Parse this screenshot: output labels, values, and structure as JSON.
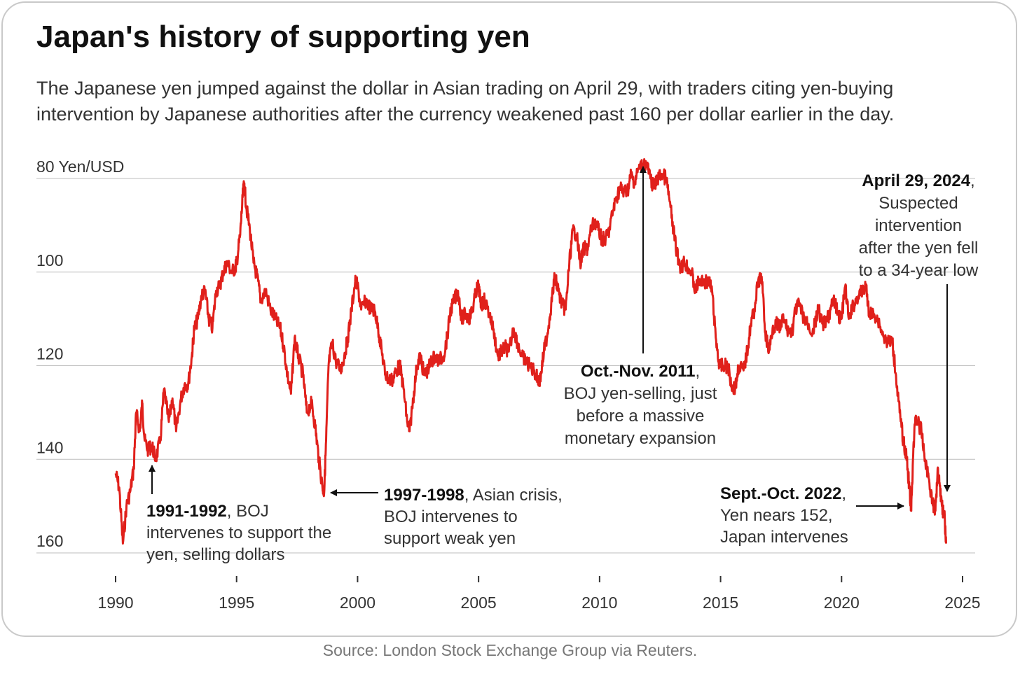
{
  "title": "Japan's history of supporting yen",
  "subtitle": "The Japanese yen jumped against the dollar in Asian trading on April 29, with traders citing yen-buying intervention by Japanese authorities after the currency weakened past 160 per dollar earlier in the day.",
  "source": "Source: London Stock Exchange Group via Reuters.",
  "colors": {
    "line": "#e0201b",
    "grid": "#bdbdbd",
    "text": "#333333",
    "arrow": "#111111"
  },
  "chart_data": {
    "type": "line",
    "ylabel": "80 Yen/USD",
    "y_inverted": true,
    "ylim": [
      80,
      160
    ],
    "xlim": [
      1990,
      2025
    ],
    "y_ticks": [
      "80 Yen/USD",
      "100",
      "120",
      "140",
      "160"
    ],
    "y_tick_values": [
      80,
      100,
      120,
      140,
      160
    ],
    "x_ticks": [
      "1990",
      "1995",
      "2000",
      "2005",
      "2010",
      "2015",
      "2020",
      "2025"
    ],
    "x_tick_values": [
      1990,
      1995,
      2000,
      2005,
      2010,
      2015,
      2020,
      2025
    ],
    "series": [
      {
        "values": [
          [
            1990.0,
            143
          ],
          [
            1990.15,
            146
          ],
          [
            1990.3,
            158
          ],
          [
            1990.45,
            150
          ],
          [
            1990.6,
            147
          ],
          [
            1990.75,
            142
          ],
          [
            1990.85,
            130
          ],
          [
            1991.0,
            134
          ],
          [
            1991.1,
            128
          ],
          [
            1991.2,
            136
          ],
          [
            1991.35,
            138
          ],
          [
            1991.5,
            137
          ],
          [
            1991.65,
            140
          ],
          [
            1991.85,
            136
          ],
          [
            1992.0,
            125
          ],
          [
            1992.2,
            132
          ],
          [
            1992.35,
            127
          ],
          [
            1992.5,
            134
          ],
          [
            1992.7,
            127
          ],
          [
            1992.85,
            124
          ],
          [
            1993.0,
            124
          ],
          [
            1993.15,
            118
          ],
          [
            1993.25,
            112
          ],
          [
            1993.4,
            110
          ],
          [
            1993.55,
            105
          ],
          [
            1993.7,
            104
          ],
          [
            1993.85,
            110
          ],
          [
            1994.0,
            112
          ],
          [
            1994.15,
            104
          ],
          [
            1994.3,
            103
          ],
          [
            1994.45,
            100
          ],
          [
            1994.6,
            98
          ],
          [
            1994.8,
            100
          ],
          [
            1994.95,
            99
          ],
          [
            1995.0,
            98
          ],
          [
            1995.15,
            92
          ],
          [
            1995.25,
            84
          ],
          [
            1995.32,
            81
          ],
          [
            1995.4,
            86
          ],
          [
            1995.55,
            91
          ],
          [
            1995.7,
            98
          ],
          [
            1995.85,
            101
          ],
          [
            1996.0,
            106
          ],
          [
            1996.2,
            104
          ],
          [
            1996.4,
            108
          ],
          [
            1996.6,
            110
          ],
          [
            1996.8,
            112
          ],
          [
            1996.95,
            116
          ],
          [
            1997.1,
            122
          ],
          [
            1997.25,
            126
          ],
          [
            1997.4,
            114
          ],
          [
            1997.55,
            118
          ],
          [
            1997.75,
            122
          ],
          [
            1997.9,
            130
          ],
          [
            1998.1,
            128
          ],
          [
            1998.25,
            133
          ],
          [
            1998.4,
            140
          ],
          [
            1998.55,
            146
          ],
          [
            1998.62,
            147
          ],
          [
            1998.7,
            136
          ],
          [
            1998.8,
            120
          ],
          [
            1998.95,
            115
          ],
          [
            1999.1,
            119
          ],
          [
            1999.3,
            121
          ],
          [
            1999.45,
            118
          ],
          [
            1999.6,
            114
          ],
          [
            1999.75,
            108
          ],
          [
            1999.9,
            102
          ],
          [
            2000.0,
            103
          ],
          [
            2000.15,
            108
          ],
          [
            2000.35,
            106
          ],
          [
            2000.55,
            108
          ],
          [
            2000.7,
            108
          ],
          [
            2000.85,
            112
          ],
          [
            2001.0,
            117
          ],
          [
            2001.15,
            122
          ],
          [
            2001.3,
            123
          ],
          [
            2001.45,
            123
          ],
          [
            2001.6,
            121
          ],
          [
            2001.75,
            120
          ],
          [
            2001.9,
            125
          ],
          [
            2002.05,
            132
          ],
          [
            2002.15,
            134
          ],
          [
            2002.3,
            127
          ],
          [
            2002.45,
            120
          ],
          [
            2002.6,
            118
          ],
          [
            2002.75,
            122
          ],
          [
            2002.9,
            121
          ],
          [
            2003.05,
            119
          ],
          [
            2003.2,
            118
          ],
          [
            2003.35,
            119
          ],
          [
            2003.55,
            118
          ],
          [
            2003.7,
            114
          ],
          [
            2003.85,
            108
          ],
          [
            2004.0,
            106
          ],
          [
            2004.15,
            104
          ],
          [
            2004.3,
            110
          ],
          [
            2004.45,
            109
          ],
          [
            2004.6,
            110
          ],
          [
            2004.75,
            108
          ],
          [
            2004.9,
            104
          ],
          [
            2005.0,
            103
          ],
          [
            2005.1,
            107
          ],
          [
            2005.25,
            106
          ],
          [
            2005.45,
            109
          ],
          [
            2005.6,
            112
          ],
          [
            2005.8,
            118
          ],
          [
            2005.95,
            117
          ],
          [
            2006.1,
            116
          ],
          [
            2006.25,
            117
          ],
          [
            2006.45,
            112
          ],
          [
            2006.6,
            115
          ],
          [
            2006.8,
            118
          ],
          [
            2006.95,
            119
          ],
          [
            2007.1,
            120
          ],
          [
            2007.3,
            121
          ],
          [
            2007.45,
            123
          ],
          [
            2007.55,
            123
          ],
          [
            2007.7,
            117
          ],
          [
            2007.85,
            113
          ],
          [
            2008.0,
            107
          ],
          [
            2008.15,
            101
          ],
          [
            2008.3,
            104
          ],
          [
            2008.45,
            107
          ],
          [
            2008.6,
            108
          ],
          [
            2008.75,
            98
          ],
          [
            2008.9,
            91
          ],
          [
            2009.05,
            92
          ],
          [
            2009.2,
            98
          ],
          [
            2009.35,
            95
          ],
          [
            2009.5,
            95
          ],
          [
            2009.65,
            91
          ],
          [
            2009.8,
            89
          ],
          [
            2009.95,
            91
          ],
          [
            2010.1,
            93
          ],
          [
            2010.25,
            93
          ],
          [
            2010.4,
            91
          ],
          [
            2010.55,
            87
          ],
          [
            2010.7,
            84
          ],
          [
            2010.85,
            82
          ],
          [
            2011.0,
            83
          ],
          [
            2011.2,
            82
          ],
          [
            2011.3,
            79
          ],
          [
            2011.45,
            81
          ],
          [
            2011.6,
            78
          ],
          [
            2011.8,
            77
          ],
          [
            2011.95,
            77
          ],
          [
            2012.1,
            80
          ],
          [
            2012.25,
            82
          ],
          [
            2012.4,
            80
          ],
          [
            2012.55,
            79
          ],
          [
            2012.75,
            80
          ],
          [
            2012.9,
            85
          ],
          [
            2013.05,
            91
          ],
          [
            2013.2,
            96
          ],
          [
            2013.35,
            99
          ],
          [
            2013.5,
            98
          ],
          [
            2013.65,
            99
          ],
          [
            2013.8,
            100
          ],
          [
            2013.95,
            104
          ],
          [
            2014.1,
            102
          ],
          [
            2014.3,
            102
          ],
          [
            2014.5,
            102
          ],
          [
            2014.65,
            104
          ],
          [
            2014.8,
            114
          ],
          [
            2014.95,
            120
          ],
          [
            2015.1,
            120
          ],
          [
            2015.3,
            120
          ],
          [
            2015.45,
            124
          ],
          [
            2015.6,
            125
          ],
          [
            2015.75,
            120
          ],
          [
            2015.95,
            121
          ],
          [
            2016.1,
            117
          ],
          [
            2016.25,
            111
          ],
          [
            2016.4,
            108
          ],
          [
            2016.55,
            102
          ],
          [
            2016.7,
            101
          ],
          [
            2016.85,
            113
          ],
          [
            2017.0,
            117
          ],
          [
            2017.15,
            112
          ],
          [
            2017.3,
            111
          ],
          [
            2017.45,
            112
          ],
          [
            2017.6,
            110
          ],
          [
            2017.75,
            112
          ],
          [
            2017.95,
            113
          ],
          [
            2018.1,
            108
          ],
          [
            2018.25,
            107
          ],
          [
            2018.45,
            110
          ],
          [
            2018.6,
            111
          ],
          [
            2018.8,
            113
          ],
          [
            2018.95,
            110
          ],
          [
            2019.05,
            108
          ],
          [
            2019.2,
            111
          ],
          [
            2019.35,
            111
          ],
          [
            2019.55,
            108
          ],
          [
            2019.7,
            106
          ],
          [
            2019.85,
            109
          ],
          [
            2020.0,
            110
          ],
          [
            2020.15,
            103
          ],
          [
            2020.3,
            110
          ],
          [
            2020.5,
            107
          ],
          [
            2020.7,
            105
          ],
          [
            2020.9,
            104
          ],
          [
            2021.0,
            103
          ],
          [
            2021.15,
            109
          ],
          [
            2021.35,
            109
          ],
          [
            2021.5,
            110
          ],
          [
            2021.75,
            114
          ],
          [
            2021.95,
            115
          ],
          [
            2022.1,
            115
          ],
          [
            2022.25,
            122
          ],
          [
            2022.4,
            130
          ],
          [
            2022.55,
            136
          ],
          [
            2022.7,
            140
          ],
          [
            2022.8,
            146
          ],
          [
            2022.88,
            151
          ],
          [
            2022.95,
            140
          ],
          [
            2023.05,
            131
          ],
          [
            2023.15,
            132
          ],
          [
            2023.3,
            134
          ],
          [
            2023.45,
            140
          ],
          [
            2023.6,
            144
          ],
          [
            2023.75,
            149
          ],
          [
            2023.88,
            151
          ],
          [
            2023.97,
            142
          ],
          [
            2024.05,
            145
          ],
          [
            2024.15,
            150
          ],
          [
            2024.25,
            152
          ],
          [
            2024.32,
            158
          ]
        ]
      }
    ],
    "annotations": [
      {
        "bold": "1991-1992",
        "rest": ", BOJ",
        "lines": [
          "intervenes to support the",
          "yen, selling dollars"
        ]
      },
      {
        "bold": "1997-1998",
        "rest": ", Asian crisis,",
        "lines": [
          "BOJ intervenes to",
          "support weak yen"
        ]
      },
      {
        "bold": "Oct.-Nov. 2011",
        "rest": ",",
        "lines": [
          "BOJ yen-selling, just",
          "before a massive",
          "monetary expansion"
        ]
      },
      {
        "bold": "Sept.-Oct. 2022",
        "rest": ",",
        "lines": [
          "Yen nears 152,",
          "Japan intervenes"
        ]
      },
      {
        "bold": "April 29, 2024",
        "rest": ",",
        "lines": [
          "Suspected",
          "intervention",
          "after the yen fell",
          "to a 34-year low"
        ]
      }
    ]
  }
}
